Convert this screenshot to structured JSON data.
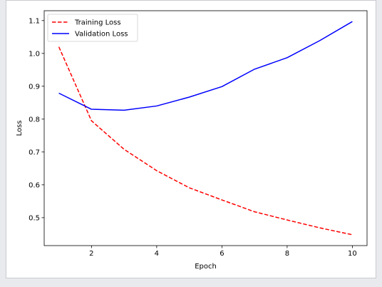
{
  "chart_data": {
    "type": "line",
    "title": "",
    "xlabel": "Epoch",
    "ylabel": "Loss",
    "xlim": [
      0.55,
      10.45
    ],
    "ylim": [
      0.415,
      1.13
    ],
    "xticks": [
      2,
      4,
      6,
      8,
      10
    ],
    "yticks": [
      0.5,
      0.6,
      0.7,
      0.8,
      0.9,
      1.0,
      1.1
    ],
    "x": [
      1,
      2,
      3,
      4,
      5,
      6,
      7,
      8,
      9,
      10
    ],
    "grid": false,
    "legend_position": "top-left",
    "series": [
      {
        "name": "Training Loss",
        "color": "#ff0000",
        "style": "dashed",
        "values": [
          1.02,
          0.795,
          0.708,
          0.643,
          0.591,
          0.554,
          0.518,
          0.493,
          0.469,
          0.448
        ]
      },
      {
        "name": "Validation Loss",
        "color": "#0000ff",
        "style": "solid",
        "values": [
          0.879,
          0.83,
          0.827,
          0.84,
          0.867,
          0.899,
          0.952,
          0.987,
          1.039,
          1.097
        ]
      }
    ]
  }
}
